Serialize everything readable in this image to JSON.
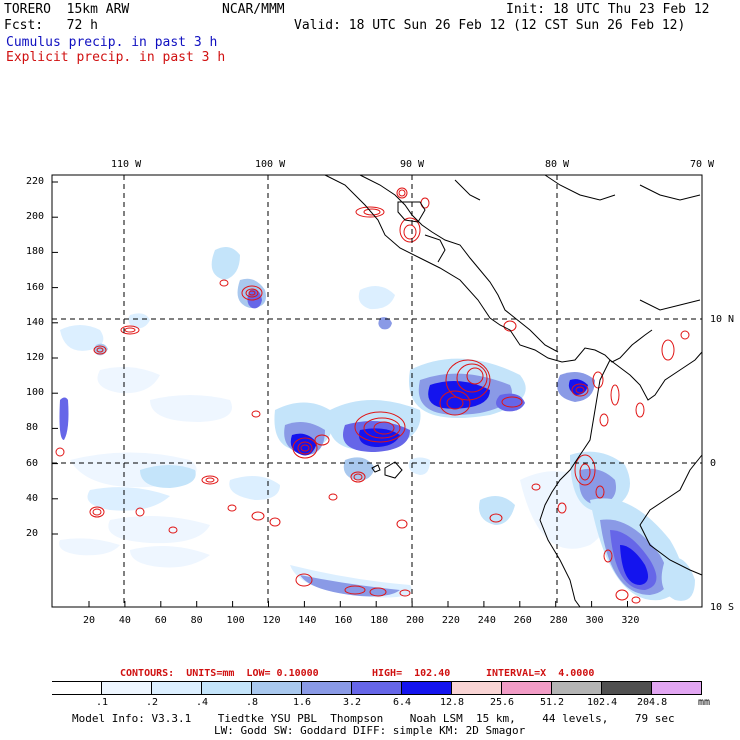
{
  "header": {
    "model": "TORERO  15km ARW",
    "org": "NCAR/MMM",
    "init": "Init: 18 UTC Thu 23 Feb 12",
    "fcst": "Fcst:   72 h",
    "valid": "Valid: 18 UTC Sun 26 Feb 12 (12 CST Sun 26 Feb 12)",
    "field1": "Cumulus precip. in past 3 h",
    "field2": "Explicit precip. in past 3 h",
    "field1_color": "#1010c0",
    "field2_color": "#d01010"
  },
  "map": {
    "top_lon_labels": [
      "110 W",
      "100 W",
      "90 W",
      "80 W",
      "70 W"
    ],
    "right_lat_labels": [
      "10 N",
      "0",
      "10 S"
    ],
    "y_ticks": [
      "220",
      "200",
      "180",
      "160",
      "140",
      "120",
      "100",
      "80",
      "60",
      "40",
      "20"
    ],
    "x_ticks": [
      "20",
      "40",
      "60",
      "80",
      "100",
      "120",
      "140",
      "160",
      "180",
      "200",
      "220",
      "240",
      "260",
      "280",
      "300",
      "320"
    ]
  },
  "contours": {
    "units": "CONTOURS:  UNITS=mm  LOW= 0.10000",
    "high": "HIGH=  102.40",
    "interval": "INTERVAL=X  4.0000"
  },
  "legend": {
    "labels": [
      ".1",
      ".2",
      ".4",
      ".8",
      "1.6",
      "3.2",
      "6.4",
      "12.8",
      "25.6",
      "51.2",
      "102.4",
      "204.8"
    ],
    "unit": "mm",
    "colors": [
      "#ffffff",
      "#eef6ff",
      "#dcefff",
      "#c4e4fa",
      "#a9c8ee",
      "#8a9ae6",
      "#6666e8",
      "#1414ee",
      "#f9d4d4",
      "#f29cc6",
      "#b4b4b4",
      "#505050",
      "#e2a6f2"
    ]
  },
  "footer": {
    "line1": "Model Info: V3.3.1    Tiedtke YSU PBL  Thompson    Noah LSM  15 km,    44 levels,    79 sec",
    "line2": "LW: Godd SW: Goddard DIFF: simple KM: 2D Smagor"
  }
}
